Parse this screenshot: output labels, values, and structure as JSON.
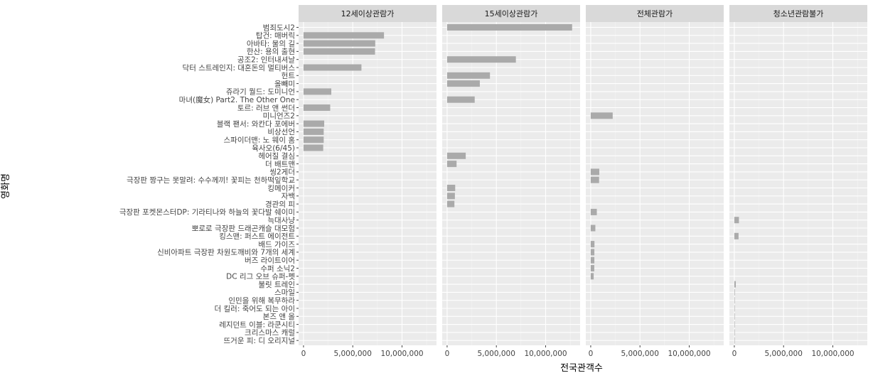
{
  "chart_data": {
    "type": "bar",
    "orientation": "horizontal",
    "facets": [
      "12세이상관람가",
      "15세이상관람가",
      "전체관람가",
      "청소년관람불가"
    ],
    "xlabel": "전국관객수",
    "ylabel": "영화명",
    "xlim": [
      -500000,
      13500000
    ],
    "xticks": [
      0,
      5000000,
      10000000
    ],
    "xtick_labels": [
      "0",
      "5,000,000",
      "10,000,000"
    ],
    "grid": true,
    "bar_color": "#aaaaaa",
    "panel_color": "#ebebeb",
    "strip_color": "#d9d9d9",
    "categories": [
      "범죄도시2",
      "탑건: 매버릭",
      "아바타: 물의 길",
      "한산: 용의 출현",
      "공조2: 인터내셔날",
      "닥터 스트레인지: 대혼돈의 멀티버스",
      "헌트",
      "올빼미",
      "쥬라기 월드: 도미니언",
      "마녀(魔女) Part2. The Other One",
      "토르: 러브 앤 썬더",
      "미니언즈2",
      "블랙 팬서: 와칸다 포에버",
      "비상선언",
      "스파이더맨: 노 웨이 홈",
      "육사오(6/45)",
      "헤어질 결심",
      "더 배트맨",
      "씽2게더",
      "극장판 짱구는 못말려: 수수께끼! 꽃피는 천하떡잎학교",
      "킹메이커",
      "자백",
      "경관의 피",
      "극장판 포켓몬스터DP: 기라티나와 하늘의 꽃다발 쉐이미",
      "늑대사냥",
      "뽀로로 극장판 드래곤캐슬 대모험",
      "킹스맨: 퍼스트 에이전트",
      "배드 가이즈",
      "신비아파트 극장판 차원도깨비와 7개의 세계",
      "버즈 라이트이어",
      "수퍼 소닉2",
      "DC 리그 오브 슈퍼-펫",
      "불릿 트레인",
      "스마일",
      "인민을 위해 복무하라",
      "더 킬러: 죽어도 되는 아이",
      "본즈 앤 올",
      "레지던트 이블: 라쿤시티",
      "크리스마스 캐럴",
      "뜨거운 피: 디 오리지널"
    ],
    "series": [
      {
        "facet": "12세이상관람가",
        "values": [
          null,
          8170000,
          7280000,
          7260000,
          null,
          5880000,
          null,
          null,
          2820000,
          null,
          2710000,
          null,
          2100000,
          2050000,
          2050000,
          2000000,
          null,
          null,
          null,
          null,
          null,
          null,
          null,
          null,
          null,
          null,
          null,
          null,
          null,
          null,
          null,
          null,
          null,
          null,
          null,
          null,
          null,
          null,
          null,
          null
        ]
      },
      {
        "facet": "15세이상관람가",
        "values": [
          12690000,
          null,
          null,
          null,
          6980000,
          null,
          4350000,
          3320000,
          null,
          2800000,
          null,
          null,
          null,
          null,
          null,
          null,
          1890000,
          960000,
          null,
          null,
          820000,
          790000,
          740000,
          null,
          null,
          null,
          null,
          null,
          null,
          null,
          null,
          null,
          null,
          null,
          null,
          null,
          null,
          null,
          null,
          null
        ]
      },
      {
        "facet": "전체관람가",
        "values": [
          null,
          null,
          null,
          null,
          null,
          null,
          null,
          null,
          null,
          null,
          null,
          2230000,
          null,
          null,
          null,
          null,
          null,
          null,
          870000,
          850000,
          null,
          null,
          null,
          620000,
          null,
          470000,
          null,
          380000,
          370000,
          370000,
          360000,
          300000,
          null,
          null,
          null,
          null,
          null,
          null,
          null,
          null
        ]
      },
      {
        "facet": "청소년관람불가",
        "values": [
          null,
          null,
          null,
          null,
          null,
          null,
          null,
          null,
          null,
          null,
          null,
          null,
          null,
          null,
          null,
          null,
          null,
          null,
          null,
          null,
          null,
          null,
          null,
          null,
          470000,
          null,
          430000,
          null,
          null,
          null,
          null,
          null,
          150000,
          50000,
          40000,
          30000,
          30000,
          20000,
          20000,
          10000
        ]
      }
    ]
  }
}
